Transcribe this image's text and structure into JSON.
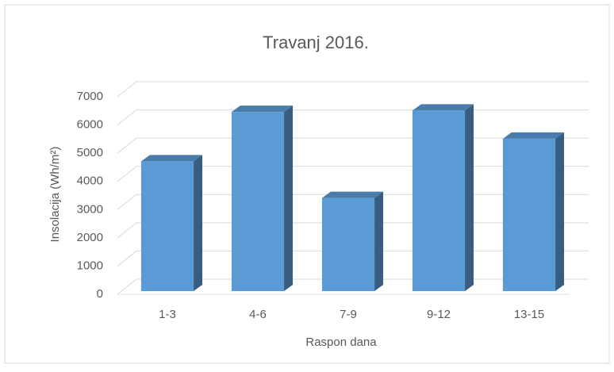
{
  "chart_data": {
    "type": "bar3d",
    "title": "Travanj 2016.",
    "x_label": "Raspon dana",
    "y_label": "Insolacija (Wh/m²)",
    "categories": [
      "1-3",
      "4-6",
      "7-9",
      "9-12",
      "13-15"
    ],
    "values": [
      4600,
      6350,
      3300,
      6400,
      5400
    ],
    "color": "#5b9bd5",
    "ylim": [
      0,
      7000
    ],
    "yticks": [
      0,
      1000,
      2000,
      3000,
      4000,
      5000,
      6000,
      7000
    ],
    "grid": true
  }
}
